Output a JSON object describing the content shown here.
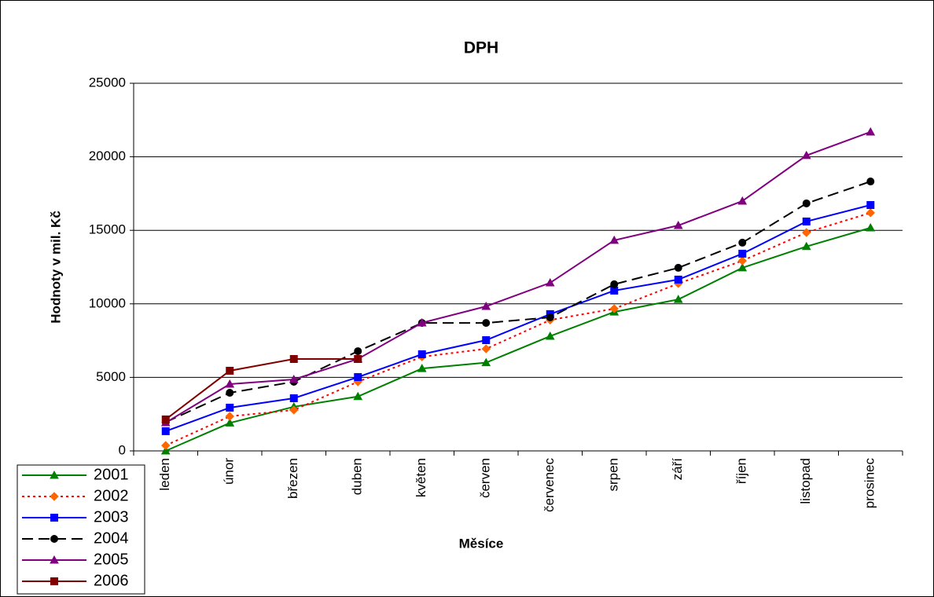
{
  "chart_data": {
    "type": "line",
    "title": "DPH",
    "x_label": "Měsíce",
    "y_label": "Hodnoty v mil. Kč",
    "categories": [
      "leden",
      "únor",
      "březen",
      "duben",
      "květen",
      "červen",
      "červenec",
      "srpen",
      "září",
      "říjen",
      "listopad",
      "prosinec"
    ],
    "ylim": [
      0,
      25000
    ],
    "yticks": [
      0,
      5000,
      10000,
      15000,
      20000,
      25000
    ],
    "grid": true,
    "legend": "bottom-left",
    "series": [
      {
        "name": "2001",
        "color": "#008000",
        "marker": "triangle",
        "dash": "solid",
        "values": [
          0,
          1900,
          3000,
          3700,
          5600,
          6000,
          7800,
          9450,
          10300,
          12450,
          13900,
          15170
        ]
      },
      {
        "name": "2002",
        "color": "#ff0000",
        "marker_color": "#ff6600",
        "marker": "diamond",
        "dash": "dotted",
        "values": [
          370,
          2350,
          2780,
          4700,
          6400,
          6940,
          8900,
          9670,
          11380,
          12930,
          14850,
          16190
        ]
      },
      {
        "name": "2003",
        "color": "#0000ff",
        "marker": "square",
        "dash": "solid",
        "values": [
          1340,
          2940,
          3580,
          5020,
          6570,
          7530,
          9300,
          10900,
          11650,
          13410,
          15600,
          16720
        ]
      },
      {
        "name": "2004",
        "color": "#000000",
        "marker": "circle",
        "dash": "dashed",
        "values": [
          1950,
          3950,
          4700,
          6780,
          8700,
          8700,
          9080,
          11330,
          12450,
          14160,
          16830,
          18320
        ]
      },
      {
        "name": "2005",
        "color": "#800080",
        "marker": "triangle",
        "dash": "solid",
        "values": [
          1920,
          4540,
          4860,
          6250,
          8710,
          9830,
          11430,
          14320,
          15330,
          16990,
          20090,
          21690
        ]
      },
      {
        "name": "2006",
        "color": "#800000",
        "marker": "square",
        "dash": "solid",
        "values": [
          2140,
          5450,
          6250,
          6250,
          null,
          null,
          null,
          null,
          null,
          null,
          null,
          null
        ]
      }
    ]
  }
}
